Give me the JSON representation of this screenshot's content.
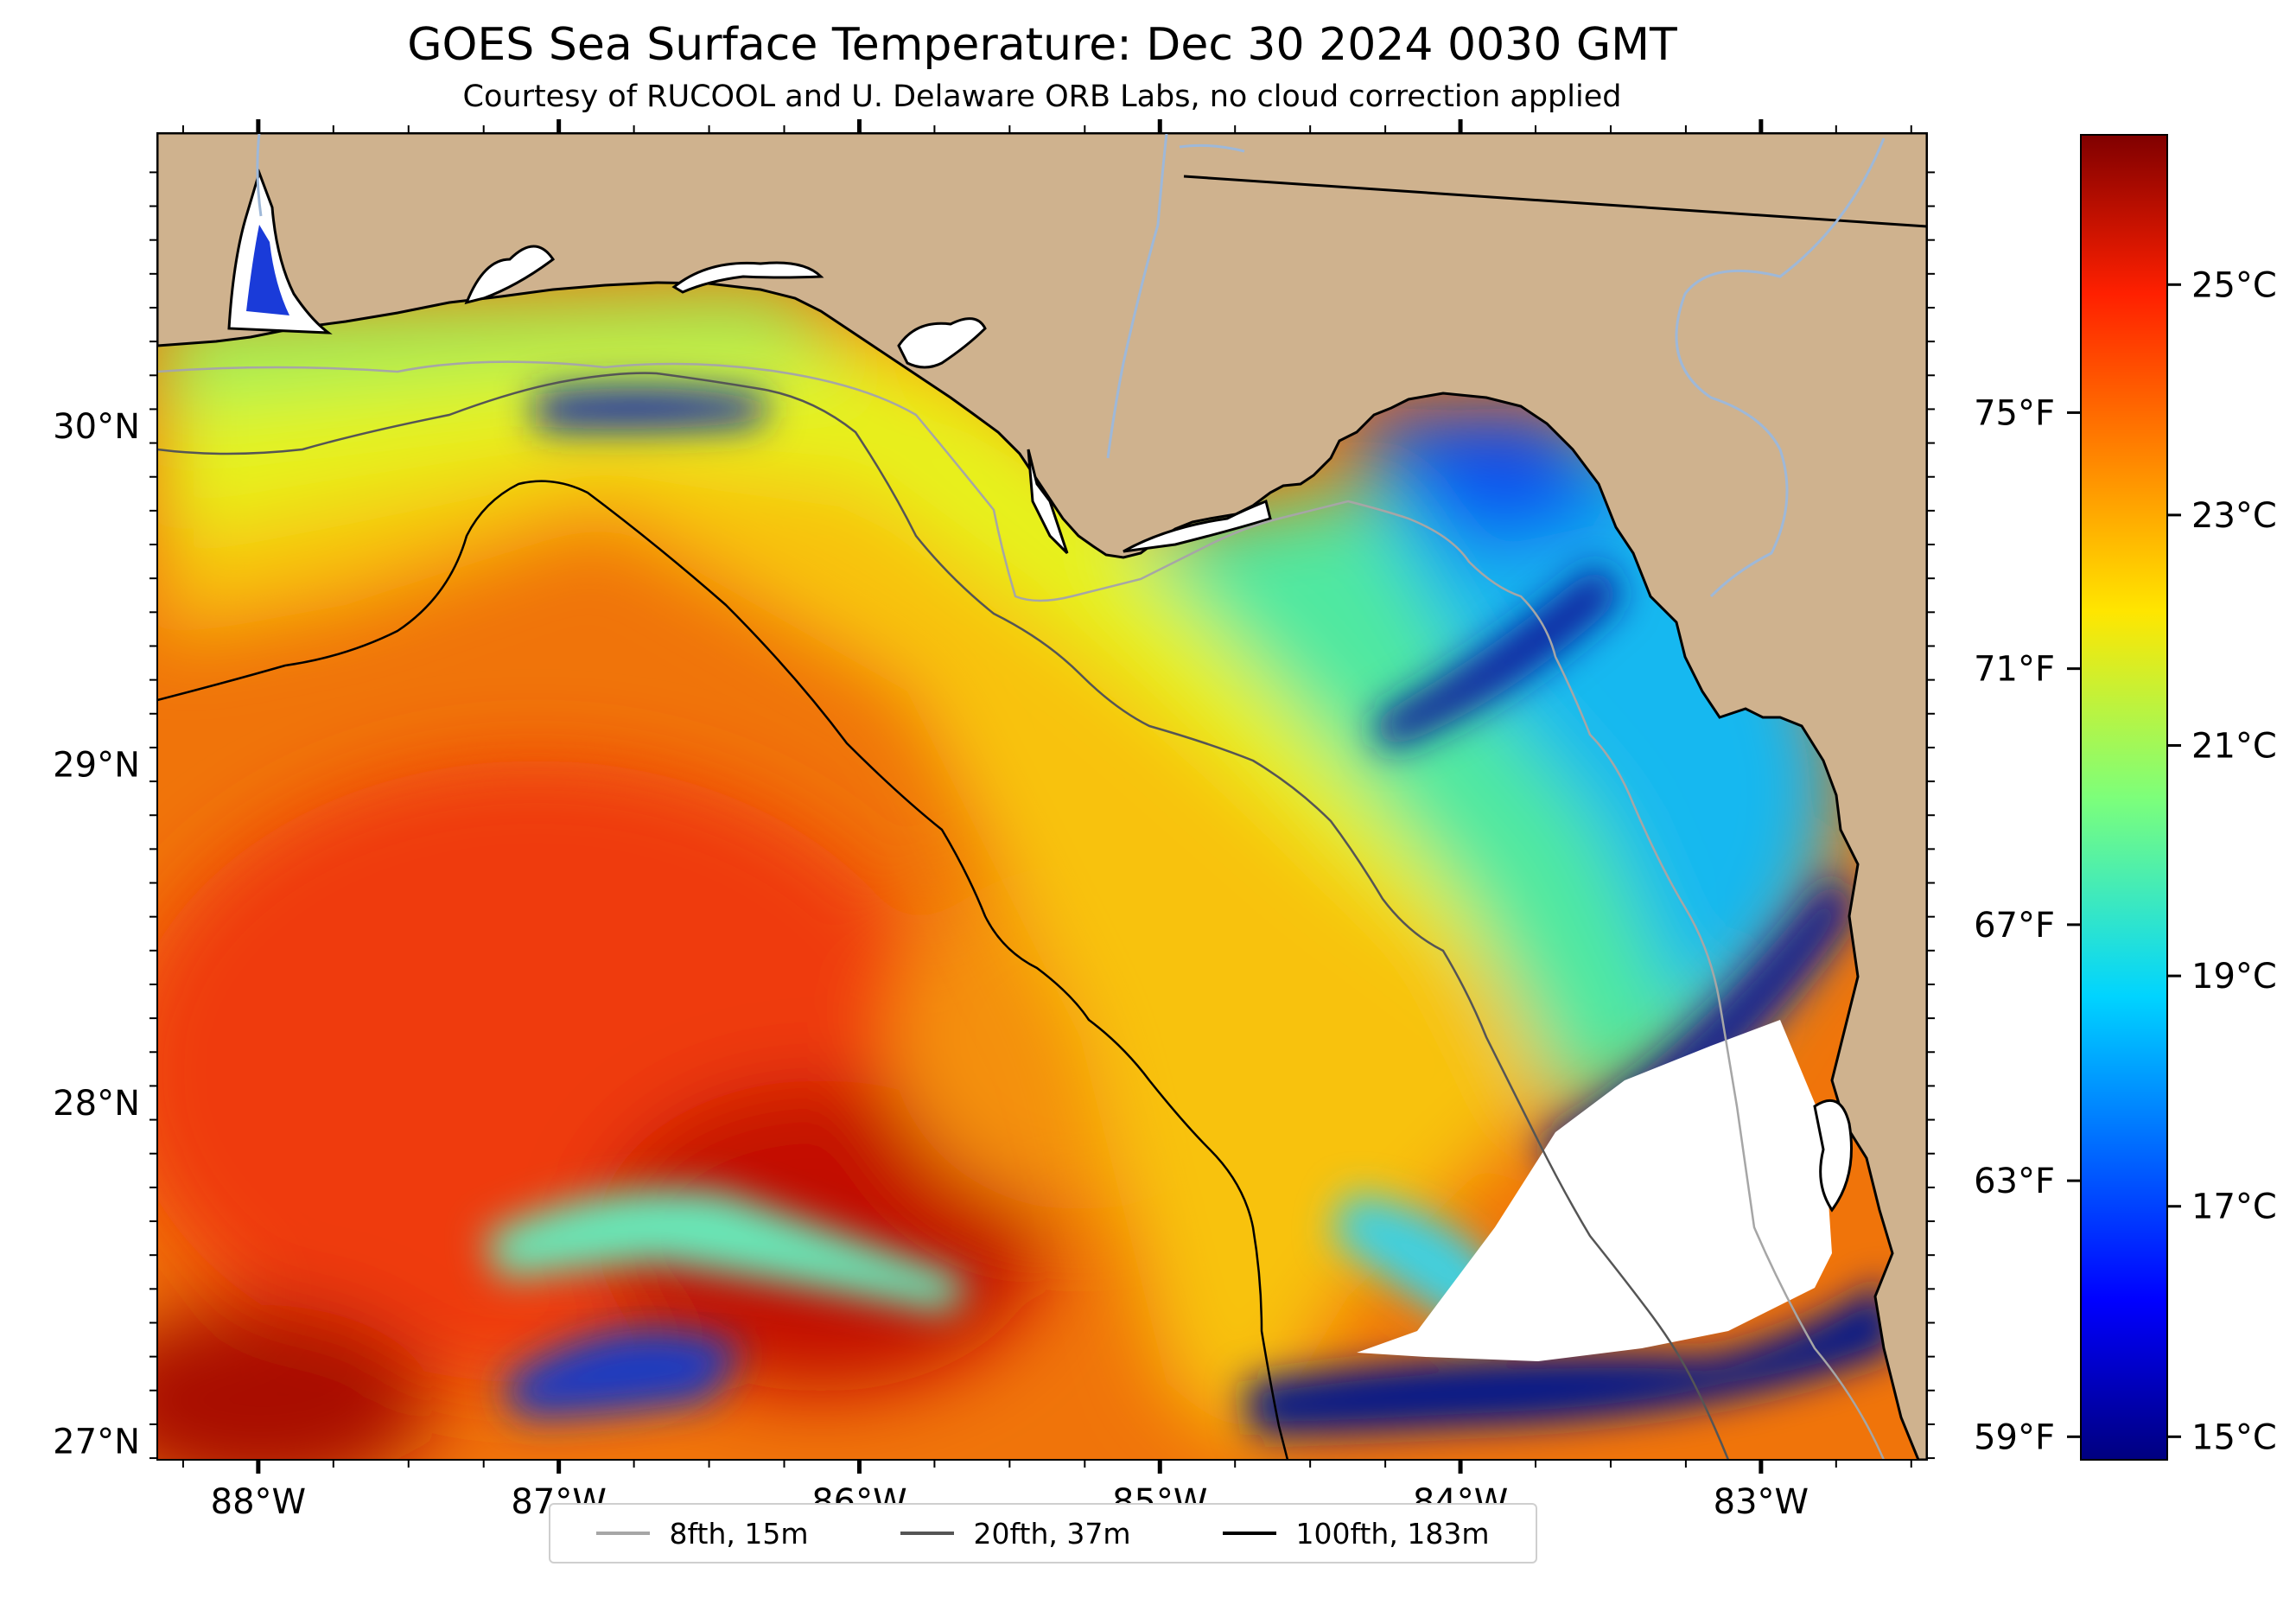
{
  "title": "GOES Sea Surface Temperature: Dec 30 2024 0030 GMT",
  "subtitle": "Courtesy of RUCOOL and U. Delaware ORB Labs, no cloud correction applied",
  "map": {
    "lon_ticks": [
      "88°W",
      "87°W",
      "86°W",
      "85°W",
      "84°W",
      "83°W"
    ],
    "lat_ticks": [
      "30°N",
      "29°N",
      "28°N",
      "27°N"
    ],
    "colors": {
      "land": "#cfb28e",
      "no_data": "#ffffff",
      "coast": "#000000",
      "rivers": "#9eb8d8"
    }
  },
  "colorbar": {
    "colormap": "jet",
    "celsius_labels": [
      "25°C",
      "23°C",
      "21°C",
      "19°C",
      "17°C",
      "15°C"
    ],
    "fahrenheit_labels": [
      "75°F",
      "71°F",
      "67°F",
      "63°F",
      "59°F"
    ],
    "range_c": [
      14.8,
      26.3
    ]
  },
  "legend": {
    "items": [
      {
        "label": "8fth, 15m",
        "color": "#a6a6a6"
      },
      {
        "label": "20fth, 37m",
        "color": "#555555"
      },
      {
        "label": "100fth, 183m",
        "color": "#000000"
      }
    ]
  }
}
